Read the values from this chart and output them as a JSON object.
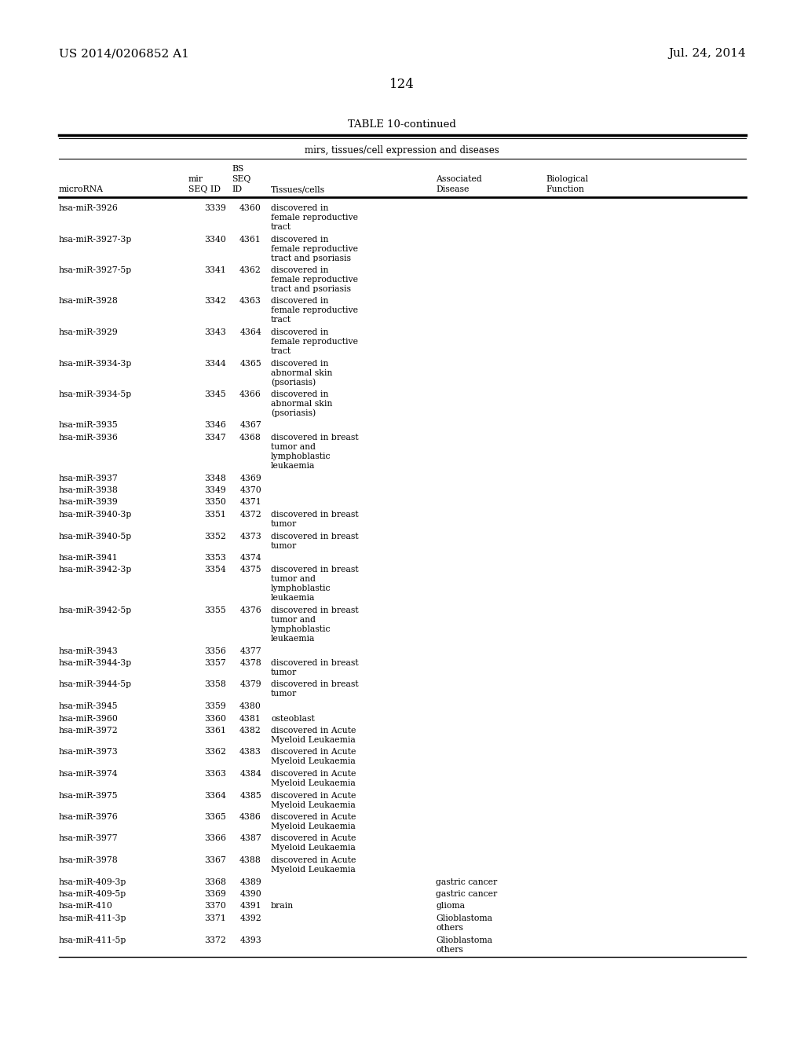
{
  "header_left": "US 2014/0206852 A1",
  "header_right": "Jul. 24, 2014",
  "page_number": "124",
  "table_title": "TABLE 10-continued",
  "table_subtitle": "mirs, tissues/cell expression and diseases",
  "bg_color": "#ffffff",
  "text_color": "#000000",
  "font_size": 7.8,
  "col_x_pts": {
    "mirna": 75,
    "mir": 240,
    "bs": 295,
    "tissues": 345,
    "disease": 555,
    "bio": 695
  },
  "rows": [
    {
      "mirna": "hsa-miR-3926",
      "mir": "3339",
      "bs": "4360",
      "tissues": "discovered in\nfemale reproductive\ntract",
      "disease": "",
      "bio": ""
    },
    {
      "mirna": "hsa-miR-3927-3p",
      "mir": "3340",
      "bs": "4361",
      "tissues": "discovered in\nfemale reproductive\ntract and psoriasis",
      "disease": "",
      "bio": ""
    },
    {
      "mirna": "hsa-miR-3927-5p",
      "mir": "3341",
      "bs": "4362",
      "tissues": "discovered in\nfemale reproductive\ntract and psoriasis",
      "disease": "",
      "bio": ""
    },
    {
      "mirna": "hsa-miR-3928",
      "mir": "3342",
      "bs": "4363",
      "tissues": "discovered in\nfemale reproductive\ntract",
      "disease": "",
      "bio": ""
    },
    {
      "mirna": "hsa-miR-3929",
      "mir": "3343",
      "bs": "4364",
      "tissues": "discovered in\nfemale reproductive\ntract",
      "disease": "",
      "bio": ""
    },
    {
      "mirna": "hsa-miR-3934-3p",
      "mir": "3344",
      "bs": "4365",
      "tissues": "discovered in\nabnormal skin\n(psoriasis)",
      "disease": "",
      "bio": ""
    },
    {
      "mirna": "hsa-miR-3934-5p",
      "mir": "3345",
      "bs": "4366",
      "tissues": "discovered in\nabnormal skin\n(psoriasis)",
      "disease": "",
      "bio": ""
    },
    {
      "mirna": "hsa-miR-3935",
      "mir": "3346",
      "bs": "4367",
      "tissues": "",
      "disease": "",
      "bio": ""
    },
    {
      "mirna": "hsa-miR-3936",
      "mir": "3347",
      "bs": "4368",
      "tissues": "discovered in breast\ntumor and\nlymphoblastic\nleukaemia",
      "disease": "",
      "bio": ""
    },
    {
      "mirna": "hsa-miR-3937",
      "mir": "3348",
      "bs": "4369",
      "tissues": "",
      "disease": "",
      "bio": ""
    },
    {
      "mirna": "hsa-miR-3938",
      "mir": "3349",
      "bs": "4370",
      "tissues": "",
      "disease": "",
      "bio": ""
    },
    {
      "mirna": "hsa-miR-3939",
      "mir": "3350",
      "bs": "4371",
      "tissues": "",
      "disease": "",
      "bio": ""
    },
    {
      "mirna": "hsa-miR-3940-3p",
      "mir": "3351",
      "bs": "4372",
      "tissues": "discovered in breast\ntumor",
      "disease": "",
      "bio": ""
    },
    {
      "mirna": "hsa-miR-3940-5p",
      "mir": "3352",
      "bs": "4373",
      "tissues": "discovered in breast\ntumor",
      "disease": "",
      "bio": ""
    },
    {
      "mirna": "hsa-miR-3941",
      "mir": "3353",
      "bs": "4374",
      "tissues": "",
      "disease": "",
      "bio": ""
    },
    {
      "mirna": "hsa-miR-3942-3p",
      "mir": "3354",
      "bs": "4375",
      "tissues": "discovered in breast\ntumor and\nlymphoblastic\nleukaemia",
      "disease": "",
      "bio": ""
    },
    {
      "mirna": "hsa-miR-3942-5p",
      "mir": "3355",
      "bs": "4376",
      "tissues": "discovered in breast\ntumor and\nlymphoblastic\nleukaemia",
      "disease": "",
      "bio": ""
    },
    {
      "mirna": "hsa-miR-3943",
      "mir": "3356",
      "bs": "4377",
      "tissues": "",
      "disease": "",
      "bio": ""
    },
    {
      "mirna": "hsa-miR-3944-3p",
      "mir": "3357",
      "bs": "4378",
      "tissues": "discovered in breast\ntumor",
      "disease": "",
      "bio": ""
    },
    {
      "mirna": "hsa-miR-3944-5p",
      "mir": "3358",
      "bs": "4379",
      "tissues": "discovered in breast\ntumor",
      "disease": "",
      "bio": ""
    },
    {
      "mirna": "hsa-miR-3945",
      "mir": "3359",
      "bs": "4380",
      "tissues": "",
      "disease": "",
      "bio": ""
    },
    {
      "mirna": "hsa-miR-3960",
      "mir": "3360",
      "bs": "4381",
      "tissues": "osteoblast",
      "disease": "",
      "bio": ""
    },
    {
      "mirna": "hsa-miR-3972",
      "mir": "3361",
      "bs": "4382",
      "tissues": "discovered in Acute\nMyeloid Leukaemia",
      "disease": "",
      "bio": ""
    },
    {
      "mirna": "hsa-miR-3973",
      "mir": "3362",
      "bs": "4383",
      "tissues": "discovered in Acute\nMyeloid Leukaemia",
      "disease": "",
      "bio": ""
    },
    {
      "mirna": "hsa-miR-3974",
      "mir": "3363",
      "bs": "4384",
      "tissues": "discovered in Acute\nMyeloid Leukaemia",
      "disease": "",
      "bio": ""
    },
    {
      "mirna": "hsa-miR-3975",
      "mir": "3364",
      "bs": "4385",
      "tissues": "discovered in Acute\nMyeloid Leukaemia",
      "disease": "",
      "bio": ""
    },
    {
      "mirna": "hsa-miR-3976",
      "mir": "3365",
      "bs": "4386",
      "tissues": "discovered in Acute\nMyeloid Leukaemia",
      "disease": "",
      "bio": ""
    },
    {
      "mirna": "hsa-miR-3977",
      "mir": "3366",
      "bs": "4387",
      "tissues": "discovered in Acute\nMyeloid Leukaemia",
      "disease": "",
      "bio": ""
    },
    {
      "mirna": "hsa-miR-3978",
      "mir": "3367",
      "bs": "4388",
      "tissues": "discovered in Acute\nMyeloid Leukaemia",
      "disease": "",
      "bio": ""
    },
    {
      "mirna": "hsa-miR-409-3p",
      "mir": "3368",
      "bs": "4389",
      "tissues": "",
      "disease": "gastric cancer",
      "bio": ""
    },
    {
      "mirna": "hsa-miR-409-5p",
      "mir": "3369",
      "bs": "4390",
      "tissues": "",
      "disease": "gastric cancer",
      "bio": ""
    },
    {
      "mirna": "hsa-miR-410",
      "mir": "3370",
      "bs": "4391",
      "tissues": "brain",
      "disease": "glioma",
      "bio": ""
    },
    {
      "mirna": "hsa-miR-411-3p",
      "mir": "3371",
      "bs": "4392",
      "tissues": "",
      "disease": "Glioblastoma\nothers",
      "bio": ""
    },
    {
      "mirna": "hsa-miR-411-5p",
      "mir": "3372",
      "bs": "4393",
      "tissues": "",
      "disease": "Glioblastoma\nothers",
      "bio": ""
    }
  ]
}
